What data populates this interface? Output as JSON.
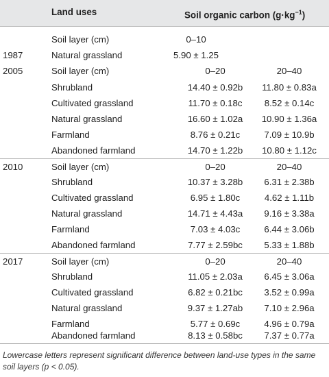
{
  "header": {
    "land_uses": "Land uses",
    "soil_organic_carbon": "Soil organic carbon (g·kg",
    "unit_exp": "−1",
    "unit_close": ")"
  },
  "sections": [
    {
      "year": "1987",
      "layer_label": "Soil layer (cm)",
      "layer_single": "0–10",
      "rows": [
        {
          "use": "Natural grassland",
          "value": "5.90 ± 1.25"
        }
      ]
    },
    {
      "year": "2005",
      "layer_label": "Soil layer (cm)",
      "layer_a": "0–20",
      "layer_b": "20–40",
      "rows": [
        {
          "use": "Shrubland",
          "a": "14.40 ± 0.92b",
          "b": "11.80 ± 0.83a"
        },
        {
          "use": "Cultivated grassland",
          "a": "11.70 ± 0.18c",
          "b": "8.52 ± 0.14c"
        },
        {
          "use": "Natural grassland",
          "a": "16.60 ± 1.02a",
          "b": "10.90 ± 1.36a"
        },
        {
          "use": "Farmland",
          "a": "8.76 ± 0.21c",
          "b": "7.09 ± 10.9b"
        },
        {
          "use": "Abandoned farmland",
          "a": "14.70 ± 1.22b",
          "b": "10.80 ± 1.12c"
        }
      ]
    },
    {
      "year": "2010",
      "layer_label": "Soil layer (cm)",
      "layer_a": "0–20",
      "layer_b": "20–40",
      "rows": [
        {
          "use": "Shrubland",
          "a": "10.37 ± 3.28b",
          "b": "6.31 ± 2.38b"
        },
        {
          "use": "Cultivated grassland",
          "a": "6.95 ± 1.80c",
          "b": "4.62 ± 1.11b"
        },
        {
          "use": "Natural grassland",
          "a": "14.71 ± 4.43a",
          "b": "9.16 ± 3.38a"
        },
        {
          "use": "Farmland",
          "a": "7.03 ± 4.03c",
          "b": "6.44 ± 3.06b"
        },
        {
          "use": "Abandoned farmland",
          "a": "7.77 ± 2.59bc",
          "b": "5.33 ± 1.88b"
        }
      ]
    },
    {
      "year": "2017",
      "layer_label": "Soil layer (cm)",
      "layer_a": "0–20",
      "layer_b": "20–40",
      "rows": [
        {
          "use": "Shrubland",
          "a": "11.05 ± 2.03a",
          "b": "6.45 ± 3.06a"
        },
        {
          "use": "Cultivated grassland",
          "a": "6.82 ± 0.21bc",
          "b": "3.52 ± 0.99a"
        },
        {
          "use": "Natural grassland",
          "a": "9.37 ± 1.27ab",
          "b": "7.10 ± 2.96a"
        },
        {
          "use": "Farmland",
          "a": "5.77 ± 0.69c",
          "b": "4.96 ± 0.79a"
        },
        {
          "use": "Abandoned farmland",
          "a": "8.13 ± 0.58bc",
          "b": "7.37 ± 0.77a"
        }
      ]
    }
  ],
  "footnote": "Lowercase letters represent significant difference between land-use types in the same soil layers (p < 0.05)."
}
